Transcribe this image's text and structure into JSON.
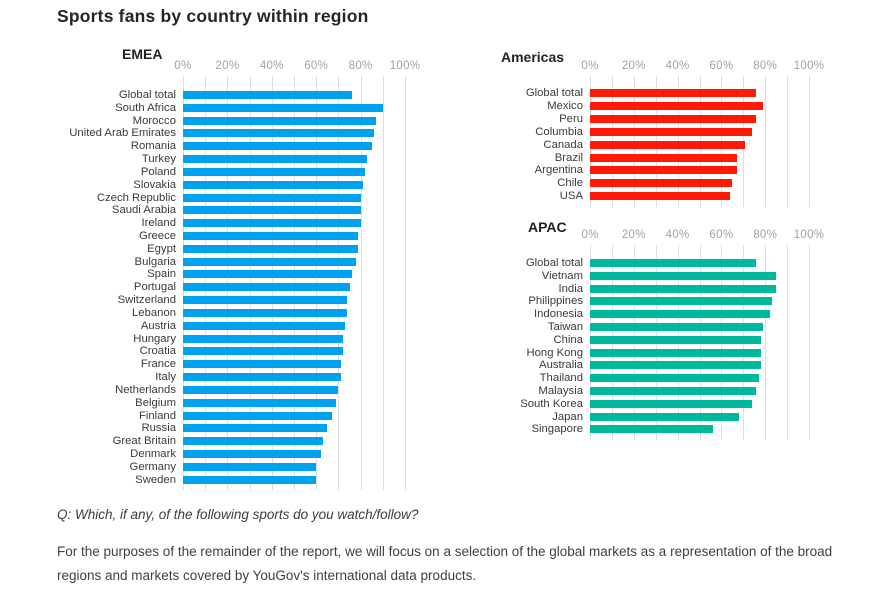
{
  "page": {
    "title": "Sports fans by country within region",
    "question": "Q: Which, if any, of the following sports do you watch/follow?",
    "footer": "For the purposes of the remainder of the report, we will focus on a selection of the global markets as a representation of the broad regions and markets covered by YouGov's international data products."
  },
  "colors": {
    "emea_bar": "#00a2ef",
    "americas_bar": "#ff1a05",
    "apac_bar": "#00b89b",
    "gridline": "#dadde3",
    "tick_text": "#a0a0a7",
    "category_text": "#3a3a3c",
    "heading_text": "#232127"
  },
  "chart_data": [
    {
      "type": "bar",
      "orientation": "horizontal",
      "title": "EMEA",
      "color": "#00a2ef",
      "xlim": [
        0,
        100
      ],
      "x_tick_labels": [
        "0%",
        "20%",
        "40%",
        "60%",
        "80%",
        "100%"
      ],
      "minor_gridline_step": 10,
      "grid": true,
      "categories": [
        "Global total",
        "South Africa",
        "Morocco",
        "United Arab Emirates",
        "Romania",
        "Turkey",
        "Poland",
        "Slovakia",
        "Czech Republic",
        "Saudi Arabia",
        "Ireland",
        "Greece",
        "Egypt",
        "Bulgaria",
        "Spain",
        "Portugal",
        "Switzerland",
        "Lebanon",
        "Austria",
        "Hungary",
        "Croatia",
        "France",
        "Italy",
        "Netherlands",
        "Belgium",
        "Finland",
        "Russia",
        "Great Britain",
        "Denmark",
        "Germany",
        "Sweden"
      ],
      "values": [
        76,
        90,
        87,
        86,
        85,
        83,
        82,
        81,
        80,
        80,
        80,
        79,
        79,
        78,
        76,
        75,
        74,
        74,
        73,
        72,
        72,
        71,
        71,
        70,
        69,
        67,
        65,
        63,
        62,
        60,
        60
      ]
    },
    {
      "type": "bar",
      "orientation": "horizontal",
      "title": "Americas",
      "color": "#ff1a05",
      "xlim": [
        0,
        100
      ],
      "x_tick_labels": [
        "0%",
        "20%",
        "40%",
        "60%",
        "80%",
        "100%"
      ],
      "minor_gridline_step": 10,
      "grid": true,
      "categories": [
        "Global total",
        "Mexico",
        "Peru",
        "Columbia",
        "Canada",
        "Brazil",
        "Argentina",
        "Chile",
        "USA"
      ],
      "values": [
        76,
        79,
        76,
        74,
        71,
        67,
        67,
        65,
        64
      ]
    },
    {
      "type": "bar",
      "orientation": "horizontal",
      "title": "APAC",
      "color": "#00b89b",
      "xlim": [
        0,
        100
      ],
      "x_tick_labels": [
        "0%",
        "20%",
        "40%",
        "60%",
        "80%",
        "100%"
      ],
      "minor_gridline_step": 10,
      "grid": true,
      "categories": [
        "Global total",
        "Vietnam",
        "India",
        "Philippines",
        "Indonesia",
        "Taiwan",
        "China",
        "Hong Kong",
        "Australia",
        "Thailand",
        "Malaysia",
        "South Korea",
        "Japan",
        "Singapore"
      ],
      "values": [
        76,
        85,
        85,
        83,
        82,
        79,
        78,
        78,
        78,
        77,
        76,
        74,
        68,
        56
      ]
    }
  ]
}
